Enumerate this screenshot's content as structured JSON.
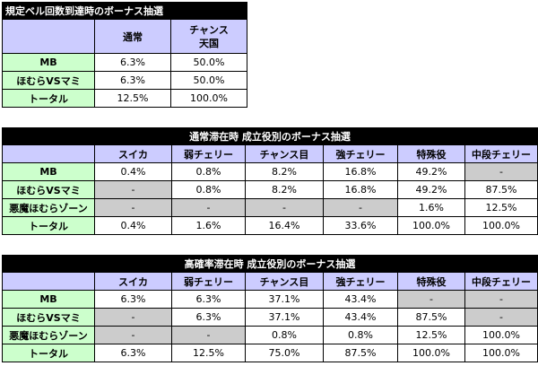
{
  "table1": {
    "title": "規定ベル回数到達時のボーナス抽選",
    "headers": [
      "通常",
      "チャンス\n天国"
    ],
    "rows": [
      {
        "label": "MB",
        "values": [
          "6.3%",
          "50.0%"
        ]
      },
      {
        "label": "ほむらVSマミ",
        "values": [
          "6.3%",
          "50.0%"
        ]
      },
      {
        "label": "トータル",
        "values": [
          "12.5%",
          "100.0%"
        ]
      }
    ]
  },
  "table2": {
    "title": "通常滞在時 成立役別のボーナス抽選",
    "headers": [
      "スイカ",
      "弱チェリー",
      "チャンス目",
      "強チェリー",
      "特殊役",
      "中段チェリー"
    ],
    "rows": [
      {
        "label": "MB",
        "values": [
          "0.4%",
          "0.8%",
          "8.2%",
          "16.8%",
          "49.2%",
          "-"
        ],
        "gray": [
          false,
          false,
          false,
          false,
          false,
          true
        ]
      },
      {
        "label": "ほむらVSマミ",
        "values": [
          "-",
          "0.8%",
          "8.2%",
          "16.8%",
          "49.2%",
          "87.5%"
        ],
        "gray": [
          true,
          false,
          false,
          false,
          false,
          false
        ]
      },
      {
        "label": "悪魔ほむらゾーン",
        "values": [
          "-",
          "-",
          "-",
          "-",
          "1.6%",
          "12.5%"
        ],
        "gray": [
          true,
          true,
          true,
          true,
          false,
          false
        ]
      },
      {
        "label": "トータル",
        "values": [
          "0.4%",
          "1.6%",
          "16.4%",
          "33.6%",
          "100.0%",
          "100.0%"
        ],
        "gray": [
          false,
          false,
          false,
          false,
          false,
          false
        ]
      }
    ]
  },
  "table3": {
    "title": "高確率滞在時 成立役別のボーナス抽選",
    "headers": [
      "スイカ",
      "弱チェリー",
      "チャンス目",
      "強チェリー",
      "特殊役",
      "中段チェリー"
    ],
    "rows": [
      {
        "label": "MB",
        "values": [
          "6.3%",
          "6.3%",
          "37.1%",
          "43.4%",
          "-",
          "-"
        ],
        "gray": [
          false,
          false,
          false,
          false,
          true,
          true
        ]
      },
      {
        "label": "ほむらVSマミ",
        "values": [
          "-",
          "6.3%",
          "37.1%",
          "43.4%",
          "87.5%",
          "-"
        ],
        "gray": [
          true,
          false,
          false,
          false,
          false,
          true
        ]
      },
      {
        "label": "悪魔ほむらゾーン",
        "values": [
          "-",
          "-",
          "0.8%",
          "0.8%",
          "12.5%",
          "100.0%"
        ],
        "gray": [
          true,
          true,
          false,
          false,
          false,
          false
        ]
      },
      {
        "label": "トータル",
        "values": [
          "6.3%",
          "12.5%",
          "75.0%",
          "87.5%",
          "100.0%",
          "100.0%"
        ],
        "gray": [
          false,
          false,
          false,
          false,
          false,
          false
        ]
      }
    ]
  },
  "colors": {
    "header_bg": "#ccccff",
    "row_label_bg": "#ccffcc",
    "na_bg": "#cccccc",
    "title_bg": "#000000"
  }
}
